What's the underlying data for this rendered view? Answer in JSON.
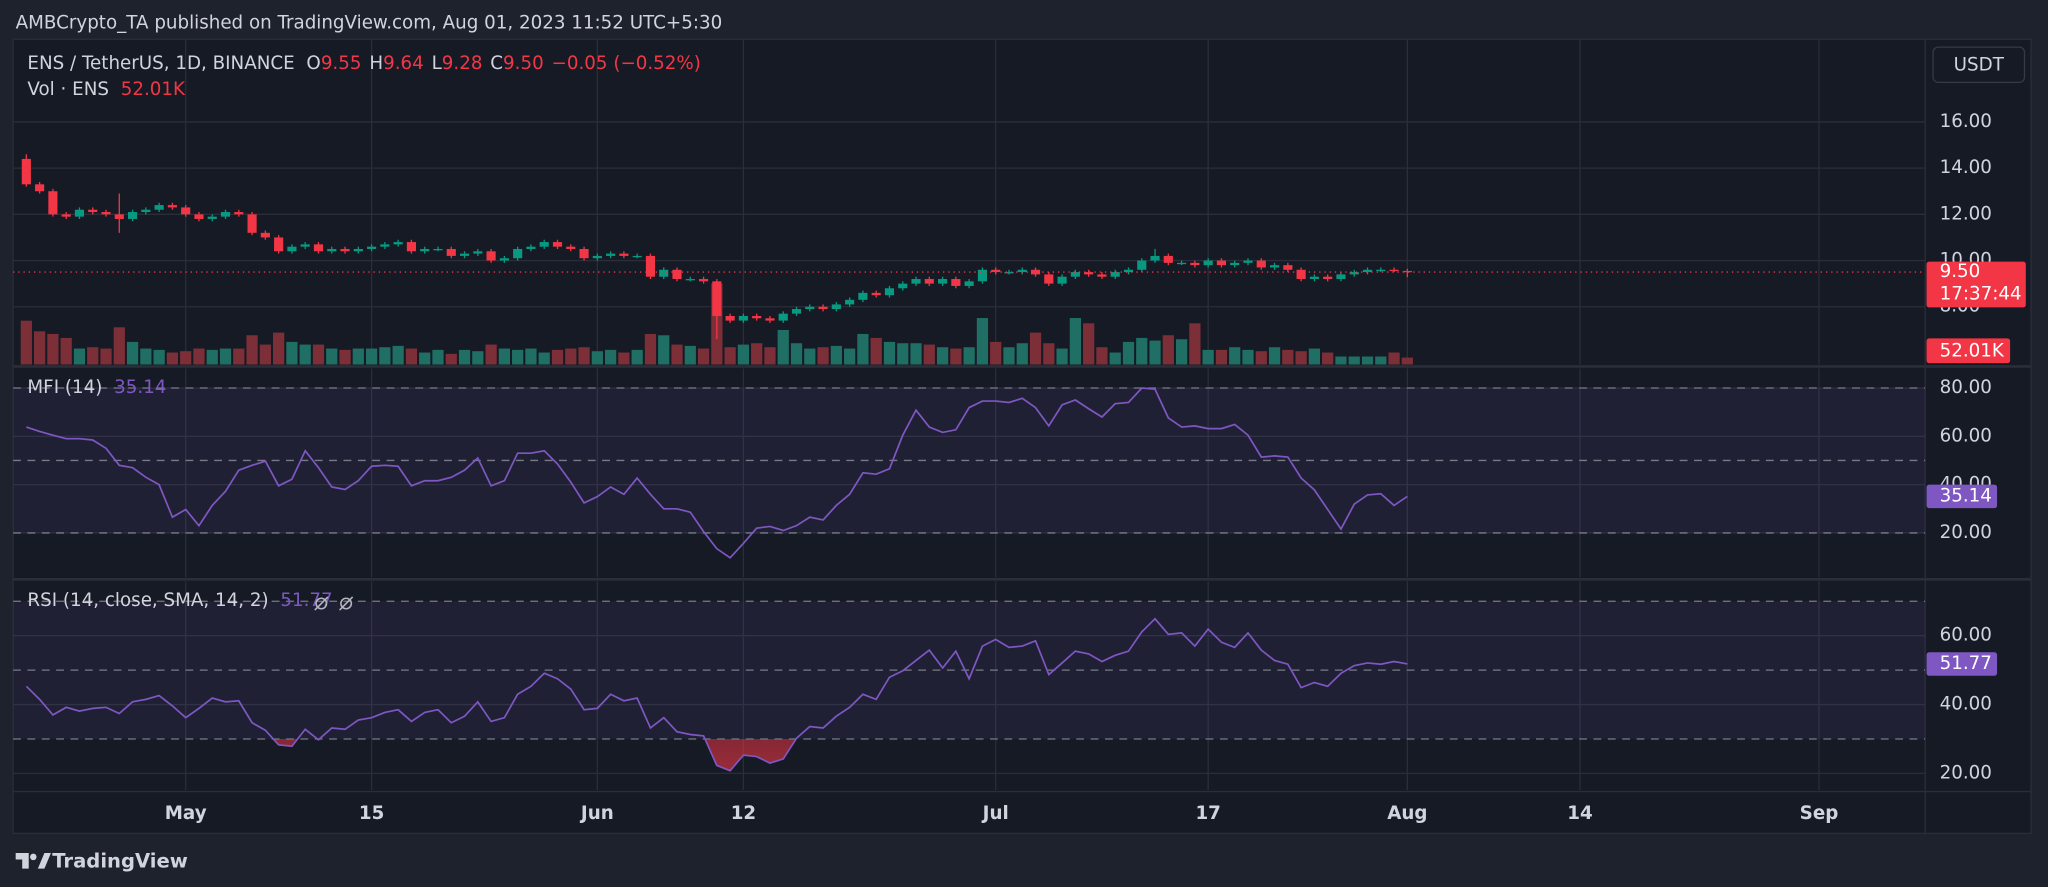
{
  "header": {
    "published": "AMBCrypto_TA published on TradingView.com, Aug 01, 2023 11:52 UTC+5:30",
    "currency": "USDT",
    "footer": "TradingView"
  },
  "chart_data": [
    {
      "type": "candlestick",
      "title": "ENS / TetherUS, 1D, BINANCE",
      "ohlc_legend": [
        {
          "label": "O",
          "value": "9.55"
        },
        {
          "label": "H",
          "value": "9.64"
        },
        {
          "label": "L",
          "value": "9.28"
        },
        {
          "label": "C",
          "value": "9.50"
        }
      ],
      "change": "−0.05 (−0.52%)",
      "last_price_label": "9.50",
      "countdown": "17:37:44",
      "up_color": "#089981",
      "down_color": "#f23645",
      "xlim": [
        "2023-04-18",
        "2023-09-09"
      ],
      "xticks": [
        {
          "value": "2023-05-01",
          "label": "May"
        },
        {
          "value": "2023-05-15",
          "label": "15"
        },
        {
          "value": "2023-06-01",
          "label": "Jun"
        },
        {
          "value": "2023-06-12",
          "label": "12"
        },
        {
          "value": "2023-07-01",
          "label": "Jul"
        },
        {
          "value": "2023-07-17",
          "label": "17"
        },
        {
          "value": "2023-08-01",
          "label": "Aug"
        },
        {
          "value": "2023-08-14",
          "label": "14"
        },
        {
          "value": "2023-09-01",
          "label": "Sep"
        }
      ],
      "ylim": [
        5.5,
        19.58
      ],
      "yticks": [
        {
          "value": 8,
          "label": "8.00"
        },
        {
          "value": 10,
          "label": "10.00"
        },
        {
          "value": 12,
          "label": "12.00"
        },
        {
          "value": 14,
          "label": "14.00"
        },
        {
          "value": 16,
          "label": "16.00"
        }
      ],
      "grid": true,
      "x": [
        "2023-04-19",
        "2023-04-20",
        "2023-04-21",
        "2023-04-22",
        "2023-04-23",
        "2023-04-24",
        "2023-04-25",
        "2023-04-26",
        "2023-04-27",
        "2023-04-28",
        "2023-04-29",
        "2023-04-30",
        "2023-05-01",
        "2023-05-02",
        "2023-05-03",
        "2023-05-04",
        "2023-05-05",
        "2023-05-06",
        "2023-05-07",
        "2023-05-08",
        "2023-05-09",
        "2023-05-10",
        "2023-05-11",
        "2023-05-12",
        "2023-05-13",
        "2023-05-14",
        "2023-05-15",
        "2023-05-16",
        "2023-05-17",
        "2023-05-18",
        "2023-05-19",
        "2023-05-20",
        "2023-05-21",
        "2023-05-22",
        "2023-05-23",
        "2023-05-24",
        "2023-05-25",
        "2023-05-26",
        "2023-05-27",
        "2023-05-28",
        "2023-05-29",
        "2023-05-30",
        "2023-05-31",
        "2023-06-01",
        "2023-06-02",
        "2023-06-03",
        "2023-06-04",
        "2023-06-05",
        "2023-06-06",
        "2023-06-07",
        "2023-06-08",
        "2023-06-09",
        "2023-06-10",
        "2023-06-11",
        "2023-06-12",
        "2023-06-13",
        "2023-06-14",
        "2023-06-15",
        "2023-06-16",
        "2023-06-17",
        "2023-06-18",
        "2023-06-19",
        "2023-06-20",
        "2023-06-21",
        "2023-06-22",
        "2023-06-23",
        "2023-06-24",
        "2023-06-25",
        "2023-06-26",
        "2023-06-27",
        "2023-06-28",
        "2023-06-29",
        "2023-06-30",
        "2023-07-01",
        "2023-07-02",
        "2023-07-03",
        "2023-07-04",
        "2023-07-05",
        "2023-07-06",
        "2023-07-07",
        "2023-07-08",
        "2023-07-09",
        "2023-07-10",
        "2023-07-11",
        "2023-07-12",
        "2023-07-13",
        "2023-07-14",
        "2023-07-15",
        "2023-07-16",
        "2023-07-17",
        "2023-07-18",
        "2023-07-19",
        "2023-07-20",
        "2023-07-21",
        "2023-07-22",
        "2023-07-23",
        "2023-07-24",
        "2023-07-25",
        "2023-07-26",
        "2023-07-27",
        "2023-07-28",
        "2023-07-29",
        "2023-07-30",
        "2023-07-31",
        "2023-08-01"
      ],
      "open": [
        14.4,
        13.3,
        13.0,
        12.0,
        11.9,
        12.2,
        12.1,
        12.0,
        11.8,
        12.1,
        12.2,
        12.4,
        12.3,
        12.0,
        11.8,
        11.9,
        12.1,
        12.0,
        11.2,
        11.0,
        10.4,
        10.6,
        10.7,
        10.4,
        10.5,
        10.4,
        10.5,
        10.6,
        10.7,
        10.8,
        10.4,
        10.5,
        10.5,
        10.2,
        10.3,
        10.4,
        10.0,
        10.1,
        10.5,
        10.6,
        10.8,
        10.6,
        10.5,
        10.1,
        10.2,
        10.3,
        10.2,
        10.2,
        9.3,
        9.6,
        9.2,
        9.2,
        9.1,
        7.6,
        7.4,
        7.6,
        7.5,
        7.4,
        7.7,
        7.9,
        8.0,
        7.9,
        8.1,
        8.3,
        8.6,
        8.5,
        8.8,
        9.0,
        9.2,
        9.0,
        9.2,
        8.9,
        9.1,
        9.6,
        9.5,
        9.5,
        9.6,
        9.4,
        9.0,
        9.3,
        9.5,
        9.4,
        9.3,
        9.5,
        9.6,
        10.0,
        10.2,
        9.9,
        9.9,
        9.8,
        10.0,
        9.8,
        9.9,
        10.0,
        9.7,
        9.8,
        9.6,
        9.2,
        9.3,
        9.2,
        9.4,
        9.5,
        9.6,
        9.6,
        9.55
      ],
      "high": [
        14.6,
        13.4,
        13.1,
        12.1,
        12.3,
        12.3,
        12.2,
        12.9,
        12.2,
        12.3,
        12.5,
        12.5,
        12.4,
        12.1,
        12.0,
        12.2,
        12.2,
        12.1,
        11.3,
        11.1,
        10.7,
        10.8,
        10.8,
        10.6,
        10.6,
        10.6,
        10.7,
        10.8,
        10.9,
        10.9,
        10.6,
        10.6,
        10.6,
        10.4,
        10.5,
        10.5,
        10.2,
        10.6,
        10.7,
        10.9,
        10.9,
        10.7,
        10.6,
        10.3,
        10.4,
        10.4,
        10.3,
        10.3,
        9.7,
        9.7,
        9.3,
        9.3,
        9.2,
        7.7,
        7.7,
        7.7,
        7.6,
        7.8,
        8.0,
        8.1,
        8.1,
        8.2,
        8.4,
        8.7,
        8.7,
        8.9,
        9.1,
        9.3,
        9.3,
        9.3,
        9.3,
        9.2,
        9.7,
        9.7,
        9.6,
        9.7,
        9.7,
        9.5,
        9.4,
        9.6,
        9.6,
        9.5,
        9.6,
        9.7,
        10.1,
        10.5,
        10.3,
        10.0,
        10.0,
        10.1,
        10.1,
        10.0,
        10.1,
        10.1,
        9.9,
        9.9,
        9.7,
        9.4,
        9.4,
        9.5,
        9.6,
        9.7,
        9.7,
        9.7,
        9.64
      ],
      "low": [
        13.2,
        12.9,
        11.9,
        11.8,
        11.8,
        12.0,
        11.9,
        11.2,
        11.7,
        12.0,
        12.1,
        12.2,
        11.9,
        11.7,
        11.7,
        11.8,
        11.9,
        11.1,
        10.9,
        10.3,
        10.3,
        10.5,
        10.3,
        10.3,
        10.3,
        10.3,
        10.4,
        10.5,
        10.6,
        10.3,
        10.3,
        10.4,
        10.1,
        10.1,
        10.2,
        9.9,
        9.9,
        10.0,
        10.4,
        10.5,
        10.5,
        10.4,
        10.0,
        10.0,
        10.1,
        10.1,
        10.1,
        9.2,
        9.2,
        9.1,
        9.1,
        9.0,
        6.6,
        7.3,
        7.3,
        7.4,
        7.3,
        7.3,
        7.6,
        7.8,
        7.8,
        7.8,
        8.0,
        8.2,
        8.4,
        8.4,
        8.7,
        8.9,
        8.9,
        8.9,
        8.8,
        8.8,
        9.0,
        9.4,
        9.4,
        9.4,
        9.3,
        8.9,
        8.9,
        9.2,
        9.3,
        9.2,
        9.2,
        9.4,
        9.5,
        9.9,
        9.8,
        9.8,
        9.7,
        9.7,
        9.7,
        9.7,
        9.8,
        9.6,
        9.6,
        9.5,
        9.1,
        9.1,
        9.1,
        9.1,
        9.3,
        9.4,
        9.5,
        9.5,
        9.28
      ],
      "close": [
        13.3,
        13.0,
        12.0,
        11.9,
        12.2,
        12.1,
        12.0,
        11.8,
        12.1,
        12.2,
        12.4,
        12.3,
        12.0,
        11.8,
        11.9,
        12.1,
        12.0,
        11.2,
        11.0,
        10.4,
        10.6,
        10.7,
        10.4,
        10.5,
        10.4,
        10.5,
        10.6,
        10.7,
        10.8,
        10.4,
        10.5,
        10.5,
        10.2,
        10.3,
        10.4,
        10.0,
        10.1,
        10.5,
        10.6,
        10.8,
        10.6,
        10.5,
        10.1,
        10.2,
        10.3,
        10.2,
        10.2,
        9.3,
        9.6,
        9.2,
        9.2,
        9.1,
        7.6,
        7.4,
        7.6,
        7.5,
        7.4,
        7.7,
        7.9,
        8.0,
        7.9,
        8.1,
        8.3,
        8.6,
        8.5,
        8.8,
        9.0,
        9.2,
        9.0,
        9.2,
        8.9,
        9.1,
        9.6,
        9.5,
        9.5,
        9.6,
        9.4,
        9.0,
        9.3,
        9.5,
        9.4,
        9.3,
        9.5,
        9.6,
        10.0,
        10.2,
        9.9,
        9.9,
        9.8,
        10.0,
        9.8,
        9.9,
        10.0,
        9.7,
        9.8,
        9.6,
        9.2,
        9.3,
        9.2,
        9.4,
        9.5,
        9.6,
        9.6,
        9.55,
        9.5
      ],
      "volume": {
        "name": "Vol · ENS",
        "last_value_label": "52.01K",
        "up_color": "#1f6f64",
        "down_color": "#7d2f37",
        "values": [
          330000,
          250000,
          230000,
          200000,
          120000,
          130000,
          120000,
          280000,
          170000,
          120000,
          110000,
          90000,
          100000,
          120000,
          110000,
          120000,
          120000,
          220000,
          150000,
          240000,
          170000,
          150000,
          150000,
          120000,
          110000,
          120000,
          120000,
          130000,
          140000,
          120000,
          90000,
          110000,
          80000,
          110000,
          100000,
          150000,
          120000,
          110000,
          120000,
          90000,
          110000,
          120000,
          130000,
          100000,
          110000,
          90000,
          110000,
          230000,
          220000,
          150000,
          140000,
          120000,
          610000,
          130000,
          150000,
          160000,
          130000,
          260000,
          160000,
          120000,
          130000,
          140000,
          120000,
          230000,
          200000,
          170000,
          160000,
          160000,
          150000,
          130000,
          120000,
          130000,
          350000,
          170000,
          130000,
          160000,
          240000,
          160000,
          120000,
          350000,
          310000,
          130000,
          90000,
          170000,
          200000,
          180000,
          220000,
          190000,
          310000,
          110000,
          110000,
          130000,
          110000,
          100000,
          130000,
          110000,
          100000,
          120000,
          90000,
          60000,
          60000,
          60000,
          60000,
          90000,
          52010
        ]
      }
    },
    {
      "type": "line",
      "title": "MFI (14)",
      "color": "#7e57c2",
      "ylim": [
        1.6,
        88.1
      ],
      "yticks": [
        {
          "value": 20,
          "label": "20.00"
        },
        {
          "value": 40,
          "label": "40.00"
        },
        {
          "value": 60,
          "label": "60.00"
        },
        {
          "value": 80,
          "label": "80.00"
        }
      ],
      "levels": [
        80,
        50,
        20
      ],
      "values": [
        63.8,
        62,
        60.5,
        59,
        59,
        58.5,
        55,
        48,
        47,
        43,
        40,
        26.5,
        29.7,
        23,
        31.4,
        37.3,
        46,
        48,
        49.7,
        39.5,
        42.2,
        54,
        47,
        39,
        38,
        41.6,
        47.6,
        48,
        47.6,
        39.5,
        41.6,
        41.6,
        43,
        46,
        51,
        39.5,
        41.6,
        53,
        53,
        54,
        48.6,
        41,
        32.4,
        35,
        39,
        36,
        42.7,
        36,
        30,
        30,
        28.6,
        20.5,
        13.5,
        9.7,
        15.7,
        22,
        22.7,
        21,
        23,
        26.5,
        25.4,
        31.4,
        36,
        44.9,
        44.3,
        46.5,
        60.5,
        70.8,
        63.8,
        61.6,
        62.7,
        71.9,
        74.6,
        74.6,
        74,
        75.7,
        71.9,
        64.3,
        73,
        75,
        71.4,
        68,
        73.5,
        74,
        80,
        79.5,
        67.6,
        63.8,
        64.3,
        63.2,
        63.2,
        64.9,
        60.5,
        51.4,
        51.9,
        51.4,
        42.7,
        37.8,
        29.7,
        21.6,
        31.9,
        35.7,
        36.2,
        31.4,
        35.14
      ]
    },
    {
      "type": "line",
      "title": "RSI (14, close, SMA, 14, 2)",
      "color": "#7e57c2",
      "ylim": [
        15.1,
        75.8
      ],
      "yticks": [
        {
          "value": 20,
          "label": "20.00"
        },
        {
          "value": 40,
          "label": "40.00"
        },
        {
          "value": 60,
          "label": "60.00"
        }
      ],
      "levels": [
        70,
        50,
        30
      ],
      "values": [
        45.3,
        41.5,
        37,
        39.2,
        38.1,
        38.9,
        39.2,
        37.4,
        40.8,
        41.5,
        42.6,
        39.6,
        36.2,
        38.9,
        41.9,
        40.8,
        41.1,
        34.7,
        32.5,
        28.3,
        27.9,
        32.8,
        29.8,
        33.2,
        32.8,
        35.5,
        36.2,
        37.7,
        38.5,
        35.1,
        37.7,
        38.5,
        34.7,
        36.6,
        40.8,
        35.1,
        36.2,
        43,
        45.3,
        49.1,
        47.5,
        44.5,
        38.5,
        38.9,
        43,
        41.1,
        41.9,
        33.2,
        36.2,
        32.1,
        31.3,
        30.9,
        22.3,
        20.8,
        25.3,
        24.9,
        23,
        24.2,
        30.2,
        33.6,
        33.2,
        36.6,
        39.2,
        43,
        41.5,
        47.9,
        49.8,
        52.8,
        55.8,
        50.6,
        55.5,
        47.5,
        57,
        58.9,
        56.6,
        57,
        58.5,
        48.7,
        52.1,
        55.5,
        54.7,
        52.5,
        54.3,
        55.5,
        61.1,
        64.9,
        60.4,
        60.8,
        57,
        61.9,
        58.1,
        56.6,
        60.8,
        55.8,
        52.8,
        51.7,
        44.9,
        46.4,
        45.3,
        49.1,
        51.3,
        52.1,
        51.7,
        52.5,
        51.77
      ]
    }
  ]
}
